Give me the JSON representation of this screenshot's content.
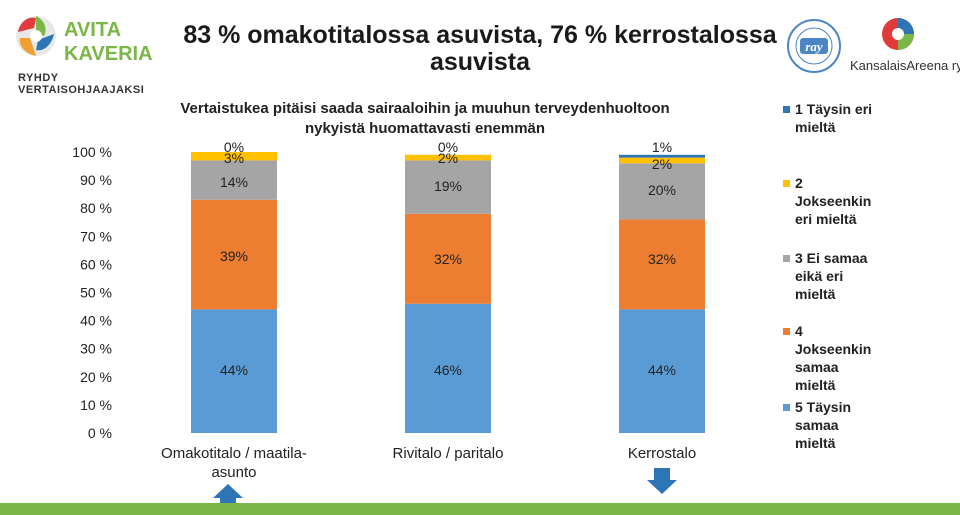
{
  "title": "83 % omakotitalossa asuvista, 76 % kerrostalossa asuvista",
  "logos": {
    "left_brand_line1": "AVITA",
    "left_brand_line2": "KAVERIA",
    "left_tagline": "RYHDY VERTAISOHJAAJAKSI",
    "ray_text": "ray",
    "right_brand": "KansalaisAreena ry"
  },
  "colors": {
    "s1": "#2e75b6",
    "s2": "#ffc000",
    "s3": "#a5a5a5",
    "s4": "#ed7d31",
    "s5": "#5b9bd5",
    "footer": "#7ab648",
    "arrow": "#2e75b6"
  },
  "chart_data": {
    "type": "bar",
    "stacked": true,
    "title": "Vertaistukea pitäisi saada sairaaloihin ja muuhun terveydenhuoltoon nykyistä huomattavasti enemmän",
    "categories": [
      "Omakotitalo / maatila-asunto",
      "Rivitalo / paritalo",
      "Kerrostalo"
    ],
    "series": [
      {
        "name": "5 Täysin samaa mieltä",
        "values": [
          44,
          46,
          44
        ],
        "labels": [
          "44%",
          "46%",
          "44%"
        ]
      },
      {
        "name": "4 Jokseenkin samaa mieltä",
        "values": [
          39,
          32,
          32
        ],
        "labels": [
          "39%",
          "32%",
          "32%"
        ]
      },
      {
        "name": "3 Ei samaa eikä eri mieltä",
        "values": [
          14,
          19,
          20
        ],
        "labels": [
          "14%",
          "19%",
          "20%"
        ]
      },
      {
        "name": "2 Jokseenkin eri mieltä",
        "values": [
          3,
          2,
          2
        ],
        "labels": [
          "3%",
          "2%",
          "2%"
        ]
      },
      {
        "name": "1 Täysin eri mieltä",
        "values": [
          0,
          0,
          1
        ],
        "labels": [
          "0%",
          "0%",
          "1%"
        ]
      }
    ],
    "legend_order": [
      "1 Täysin eri mieltä",
      "2 Jokseenkin eri mieltä",
      "3 Ei samaa eikä eri mieltä",
      "4 Jokseenkin samaa mieltä",
      "5 Täysin samaa mieltä"
    ],
    "yticks": [
      "0 %",
      "10 %",
      "20 %",
      "30 %",
      "40 %",
      "50 %",
      "60 %",
      "70 %",
      "80 %",
      "90 %",
      "100 %"
    ],
    "ylim": [
      0,
      100
    ],
    "grid": false,
    "legend_position": "right",
    "markers": [
      "up",
      "none",
      "down"
    ]
  }
}
